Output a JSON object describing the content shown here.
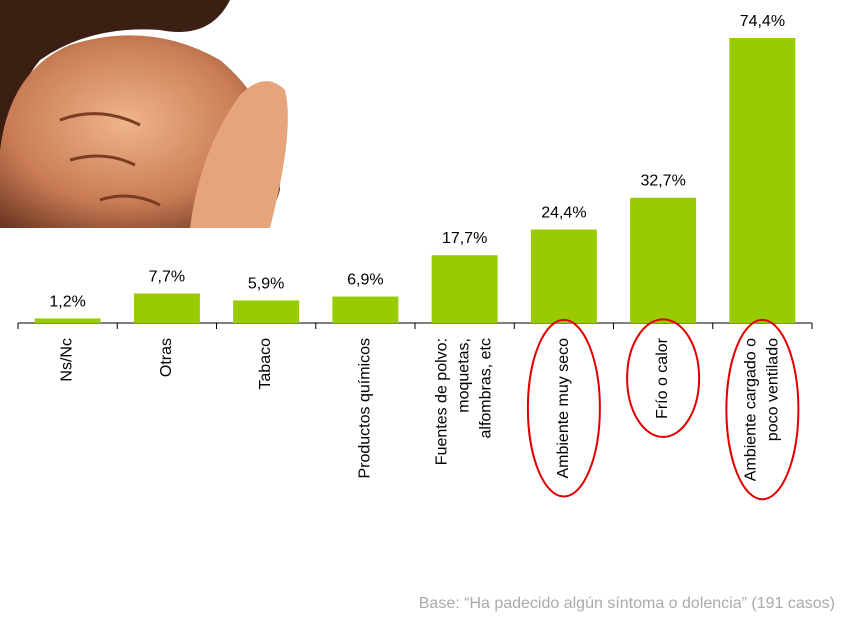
{
  "chart_data": {
    "type": "bar",
    "categories": [
      "Ns/Nc",
      "Otras",
      "Tabaco",
      "Productos químicos",
      "Fuentes de polvo:\nmoquetas,\nalfombras, etc",
      "Ambiente muy seco",
      "Frío o calor",
      "Ambiente cargado o\npoco ventilado"
    ],
    "values": [
      1.2,
      7.7,
      5.9,
      6.9,
      17.7,
      24.4,
      32.7,
      74.4
    ],
    "value_labels": [
      "1,2%",
      "7,7%",
      "5,9%",
      "6,9%",
      "17,7%",
      "24,4%",
      "32,7%",
      "74,4%"
    ],
    "color": "#99cc00",
    "highlighted_categories": [
      5,
      6,
      7
    ],
    "highlight_color": "#e00000",
    "note": "Base: “Ha padecido algún síntoma o dolencia” (191 casos)"
  }
}
